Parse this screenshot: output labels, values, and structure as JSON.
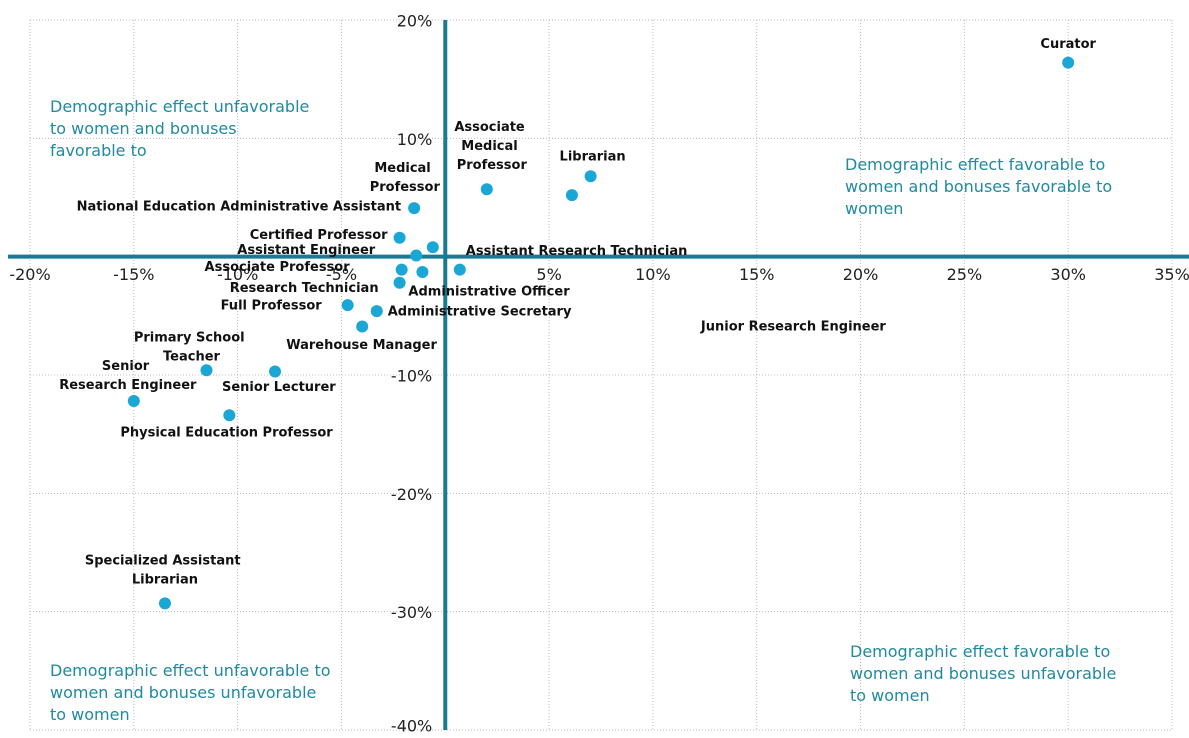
{
  "chart_data": {
    "type": "scatter",
    "xlim": [
      -20,
      35
    ],
    "ylim": [
      -40,
      20
    ],
    "xticks": [
      {
        "value": -20,
        "label": "-20%"
      },
      {
        "value": -15,
        "label": "-15%"
      },
      {
        "value": -10,
        "label": "-10%"
      },
      {
        "value": -5,
        "label": "-5%"
      },
      {
        "value": 0,
        "label": ""
      },
      {
        "value": 5,
        "label": "5%"
      },
      {
        "value": 10,
        "label": "10%"
      },
      {
        "value": 15,
        "label": "15%"
      },
      {
        "value": 20,
        "label": "20%"
      },
      {
        "value": 25,
        "label": "25%"
      },
      {
        "value": 30,
        "label": "30%"
      },
      {
        "value": 35,
        "label": "35%"
      }
    ],
    "yticks": [
      {
        "value": 20,
        "label": "20%"
      },
      {
        "value": 10,
        "label": "10%"
      },
      {
        "value": 0,
        "label": ""
      },
      {
        "value": -10,
        "label": "-10%"
      },
      {
        "value": -20,
        "label": "-20%"
      },
      {
        "value": -30,
        "label": "-30%"
      },
      {
        "value": -40,
        "label": "-40%"
      }
    ],
    "grid": true,
    "color": "#1aa7d6",
    "axis_color": "#1a7a94",
    "labels": [
      "Curator",
      "Librarian",
      "Junior Research Engineer",
      "Associate Medical Professor",
      "National Education Administrative Assistant",
      "Medical Professor",
      "Certified Professor",
      "Assistant Engineer",
      "Associate Professor",
      "Research Technician",
      "Full Professor",
      "Administrative Officer",
      "Administrative Secretary",
      "Assistant Research Technician",
      "Warehouse Manager",
      "Primary School Teacher",
      "Senior Research Engineer",
      "Senior Lecturer",
      "Physical Education Professor",
      "Specialized Assistant Librarian"
    ],
    "x": [
      30.0,
      7.0,
      6.1,
      2.0,
      -1.5,
      -0.6,
      -2.2,
      -1.4,
      -2.1,
      -2.2,
      -4.7,
      -1.1,
      -3.3,
      0.7,
      -4.0,
      -11.5,
      -15.0,
      -8.2,
      -10.4,
      -13.5
    ],
    "y": [
      16.4,
      6.8,
      5.2,
      5.7,
      4.1,
      0.8,
      1.6,
      0.1,
      -1.1,
      -2.2,
      -4.1,
      -1.3,
      -4.6,
      -1.1,
      -5.9,
      -9.6,
      -12.2,
      -9.7,
      -13.4,
      -29.3
    ],
    "annotations": [
      "Demographic effect unfavorable to women and bonuses favorable to women",
      "Demographic effect favorable to women and bonuses favorable to women",
      "Demographic effect unfavorable to women and bonuses unfavorable to women",
      "Demographic effect favorable to women and bonuses unfavorable to women"
    ]
  }
}
